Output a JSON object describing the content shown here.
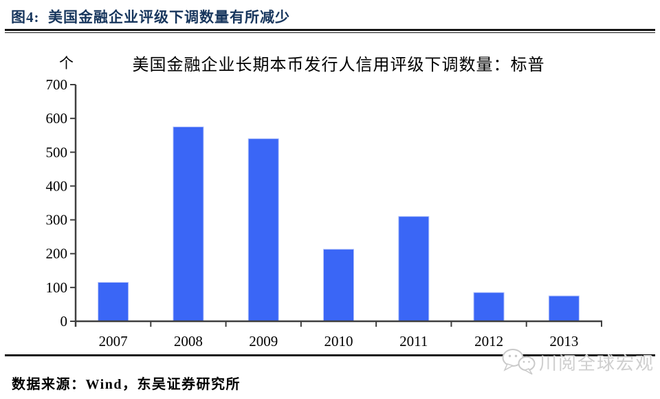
{
  "header": {
    "caption": "图4:  美国金融企业评级下调数量有所减少"
  },
  "chart_data": {
    "type": "bar",
    "title": "美国金融企业长期本币发行人信用评级下调数量：标普",
    "unit": "个",
    "categories": [
      "2007",
      "2008",
      "2009",
      "2010",
      "2011",
      "2012",
      "2013"
    ],
    "values": [
      115,
      575,
      540,
      213,
      310,
      85,
      75
    ],
    "xlabel": "",
    "ylabel": "个",
    "ylim": [
      0,
      700
    ],
    "ytick_step": 100,
    "grid": false,
    "legend": "none",
    "colors": {
      "bar_fill": "#3A66F6",
      "bar_border": "#B3C2FA",
      "axis": "#3F3F3F",
      "tick_label": "#000000"
    }
  },
  "footer": {
    "source": "数据来源：Wind，东吴证券研究所"
  },
  "watermark": {
    "text": "川阅全球宏观",
    "icon": "wechat-bubbles-icon",
    "color": "#CFCFCF"
  }
}
